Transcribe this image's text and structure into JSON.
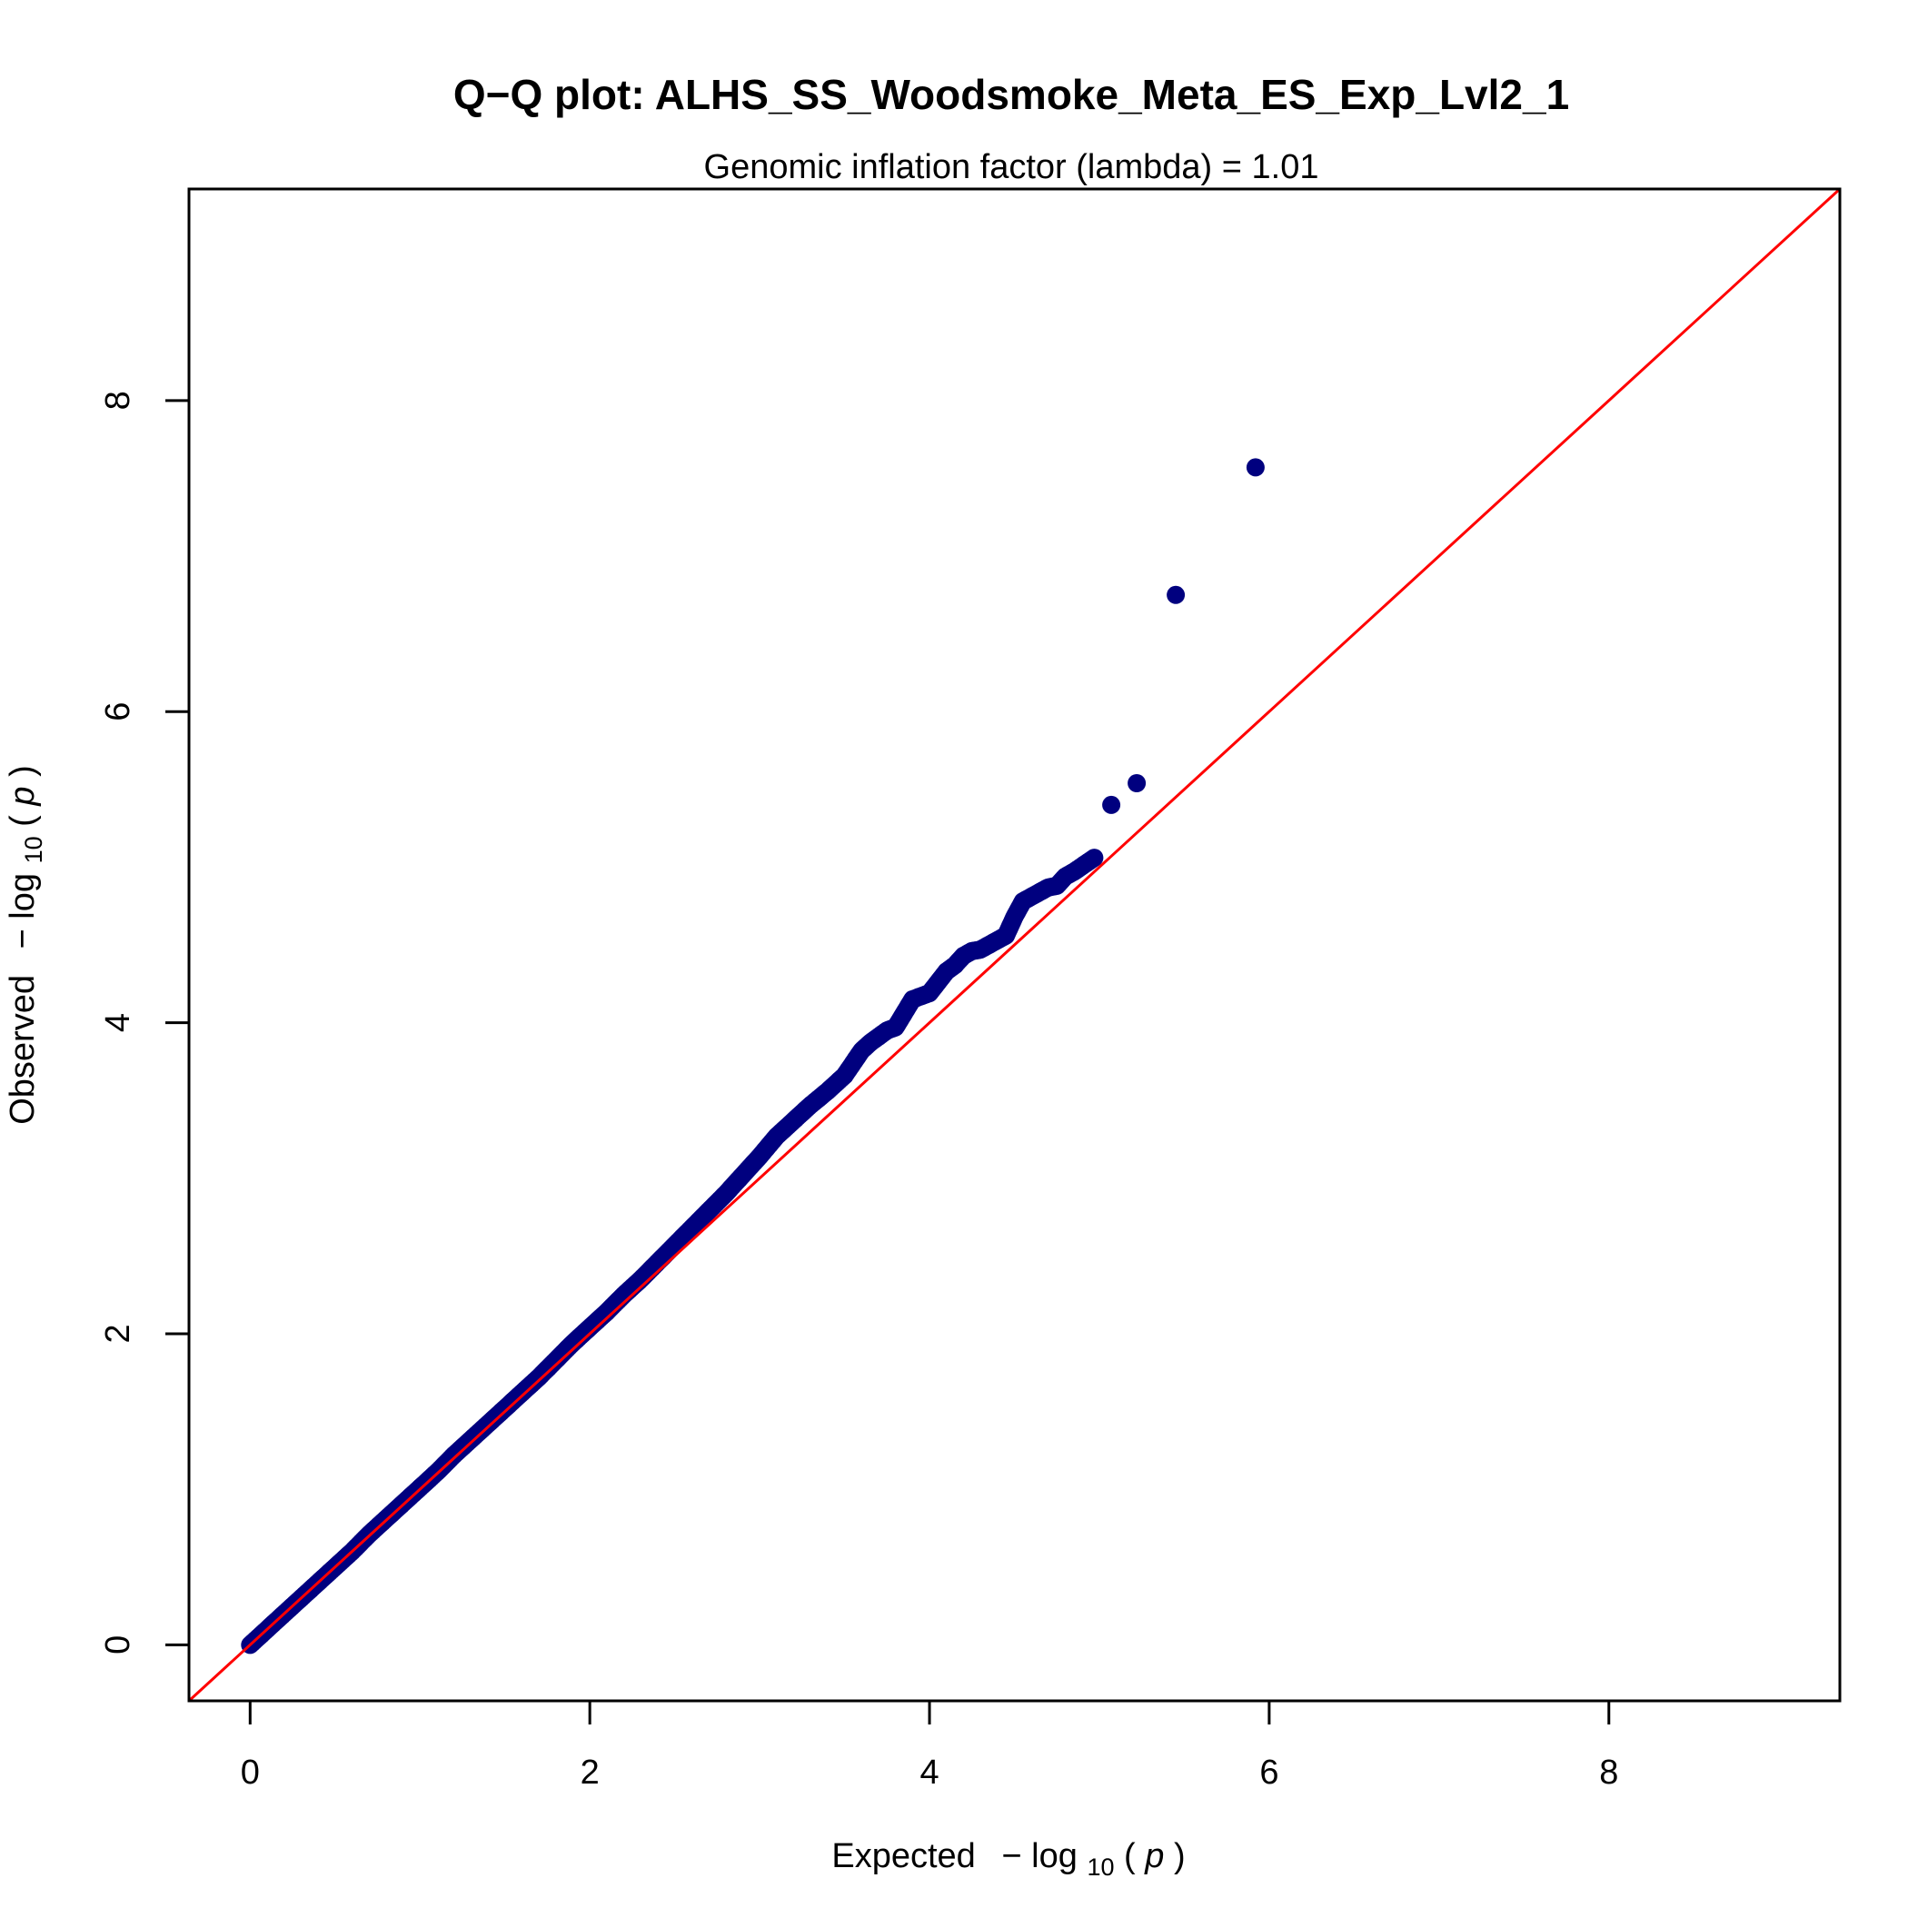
{
  "chart_data": {
    "type": "scatter",
    "title": "Q−Q plot: ALHS_SS_Woodsmoke_Meta_ES_Exp_Lvl2_1",
    "subtitle": "Genomic inflation factor (lambda) = 1.01",
    "xlabel": {
      "prefix": "Expected",
      "minus": "−",
      "log": "log",
      "sub": "10",
      "arg": "p"
    },
    "ylabel": {
      "prefix": "Observed",
      "minus": "−",
      "log": "log",
      "sub": "10",
      "arg": "p"
    },
    "xlim": [
      -0.36,
      9.36
    ],
    "ylim": [
      -0.36,
      9.36
    ],
    "xticks": [
      0,
      2,
      4,
      6,
      8
    ],
    "yticks": [
      0,
      2,
      4,
      6,
      8
    ],
    "xtick_labels": [
      "0",
      "2",
      "4",
      "6",
      "8"
    ],
    "ytick_labels": [
      "0",
      "2",
      "4",
      "6",
      "8"
    ],
    "grid": false,
    "reference_line": {
      "slope": 1,
      "intercept": 0,
      "color": "#ff0000"
    },
    "point_color": "#00007f",
    "series": [
      {
        "x": [
          0.0,
          0.1,
          0.2,
          0.3,
          0.4,
          0.5,
          0.6,
          0.7,
          0.8,
          0.9,
          1.0,
          1.1,
          1.2,
          1.3,
          1.4,
          1.5,
          1.6,
          1.7,
          1.8,
          1.9,
          2.0,
          2.1,
          2.2,
          2.3,
          2.4,
          2.5,
          2.6,
          2.7,
          2.8,
          2.9,
          3.0,
          3.1,
          3.2,
          3.3,
          3.4,
          3.5,
          3.55,
          3.6,
          3.65,
          3.7,
          3.75,
          3.8,
          3.85,
          3.9,
          3.95,
          4.0,
          4.05,
          4.1,
          4.15,
          4.2,
          4.25,
          4.3,
          4.35,
          4.4,
          4.45,
          4.5,
          4.55,
          4.6,
          4.65,
          4.7,
          4.75,
          4.8,
          4.85,
          4.97,
          5.07,
          5.22,
          5.45,
          5.92
        ],
        "y": [
          0.0,
          0.1,
          0.2,
          0.3,
          0.4,
          0.5,
          0.6,
          0.71,
          0.81,
          0.91,
          1.01,
          1.11,
          1.22,
          1.32,
          1.42,
          1.52,
          1.62,
          1.72,
          1.83,
          1.94,
          2.04,
          2.14,
          2.25,
          2.35,
          2.46,
          2.57,
          2.68,
          2.79,
          2.9,
          3.02,
          3.14,
          3.27,
          3.37,
          3.47,
          3.56,
          3.66,
          3.74,
          3.82,
          3.87,
          3.91,
          3.95,
          3.97,
          4.06,
          4.15,
          4.17,
          4.19,
          4.26,
          4.33,
          4.37,
          4.43,
          4.46,
          4.47,
          4.5,
          4.53,
          4.56,
          4.68,
          4.78,
          4.81,
          4.84,
          4.87,
          4.88,
          4.94,
          4.97,
          5.06,
          5.4,
          5.54,
          6.75,
          7.57
        ]
      }
    ]
  }
}
